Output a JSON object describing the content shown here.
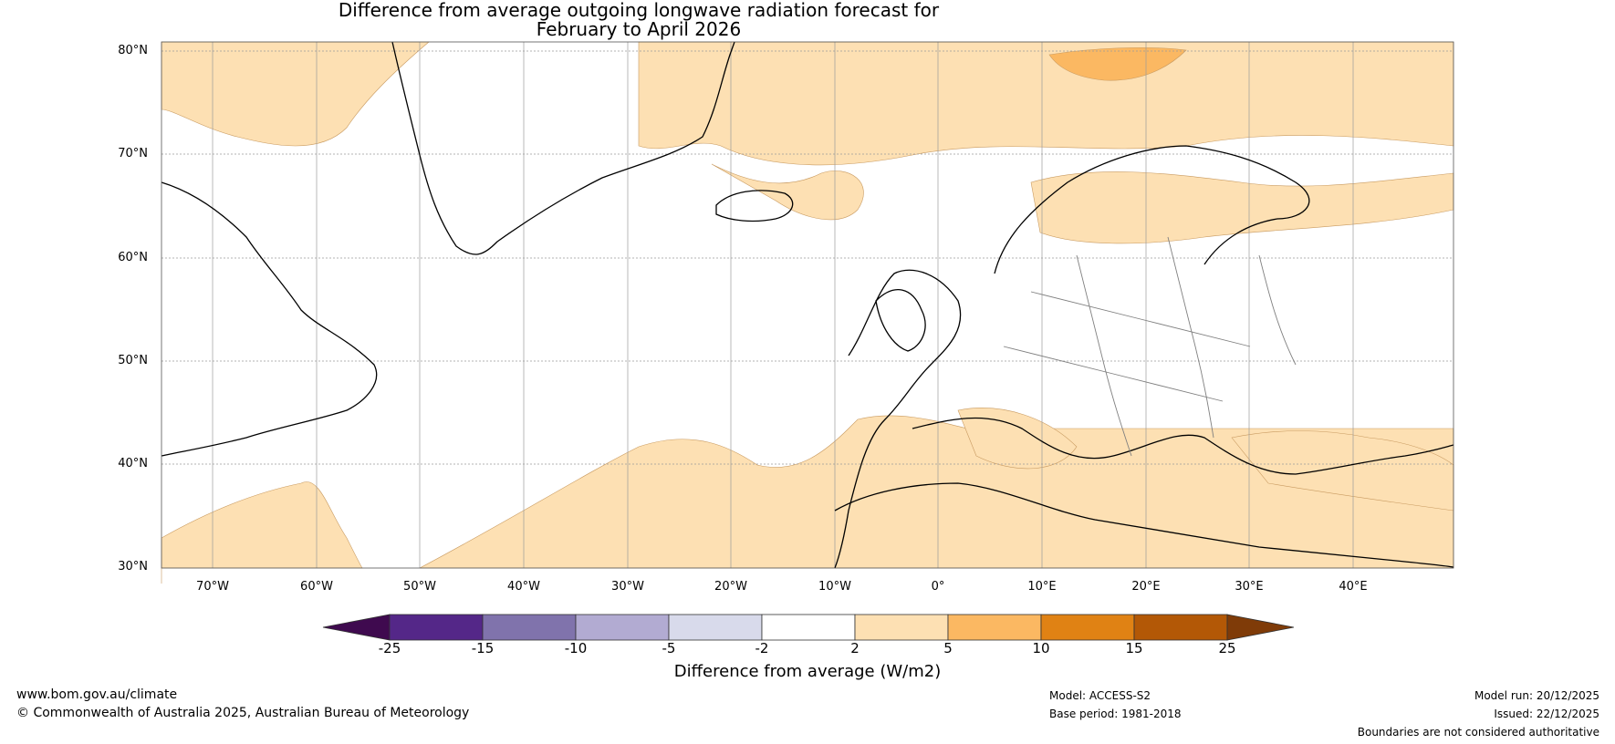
{
  "title": {
    "line1": "Difference from average outgoing longwave radiation forecast for",
    "line2": "February to April 2026"
  },
  "map": {
    "lat_labels": [
      "80°N",
      "70°N",
      "60°N",
      "50°N",
      "40°N",
      "30°N"
    ],
    "lon_labels": [
      "70°W",
      "60°W",
      "50°W",
      "40°W",
      "30°W",
      "20°W",
      "10°W",
      "0°",
      "10°E",
      "20°E",
      "30°E",
      "40°E"
    ],
    "colors": {
      "ocean_land_default": "#ffffff",
      "light_orange": "#fde0b3",
      "mid_orange": "#fbb862",
      "coast": "#000000",
      "border": "#808080"
    }
  },
  "colorbar": {
    "ticks": [
      "-25",
      "-15",
      "-10",
      "-5",
      "-2",
      "2",
      "5",
      "10",
      "15",
      "25"
    ],
    "colors": [
      "#3f0a4f",
      "#542788",
      "#8073ac",
      "#b2abd2",
      "#d8daeb",
      "#ffffff",
      "#fde0b3",
      "#fbb862",
      "#e08214",
      "#b35806",
      "#7f3b08"
    ],
    "label": "Difference from average (W/m2)"
  },
  "footer": {
    "website": "www.bom.gov.au/climate",
    "copyright": "© Commonwealth of Australia 2025, Australian Bureau of Meteorology",
    "model": "Model: ACCESS-S2",
    "base_period": "Base period: 1981-2018",
    "model_run": "Model run: 20/12/2025",
    "issued": "Issued: 22/12/2025",
    "disclaimer": "Boundaries are not considered authoritative"
  }
}
